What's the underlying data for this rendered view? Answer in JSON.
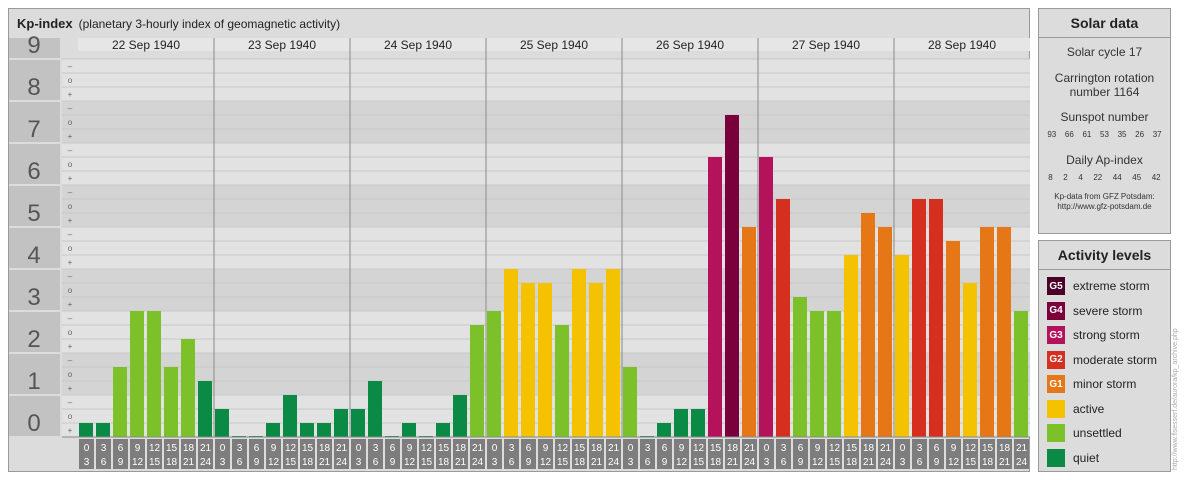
{
  "header": {
    "title": "Kp-index",
    "subtitle": "(planetary 3-hourly index of geomagnetic activity)"
  },
  "solar": {
    "title": "Solar data",
    "cycle": "Solar cycle 17",
    "carrington": "Carrington rotation number 1164",
    "sunspot_label": "Sunspot number",
    "sunspot_values": [
      "93",
      "66",
      "61",
      "53",
      "35",
      "26",
      "37"
    ],
    "ap_label": "Daily Ap-index",
    "ap_values": [
      "8",
      "2",
      "4",
      "22",
      "44",
      "45",
      "42"
    ],
    "credit_line1": "Kp-data from GFZ Potsdam:",
    "credit_line2": "http://www.gfz-potsdam.de"
  },
  "levels": {
    "title": "Activity levels",
    "items": [
      {
        "badge": "G5",
        "label": "extreme storm",
        "color": "#4a0028"
      },
      {
        "badge": "G4",
        "label": "severe storm",
        "color": "#7a003c"
      },
      {
        "badge": "G3",
        "label": "strong storm",
        "color": "#b5125c"
      },
      {
        "badge": "G2",
        "label": "moderate storm",
        "color": "#d42f1f"
      },
      {
        "badge": "G1",
        "label": "minor storm",
        "color": "#e57716"
      },
      {
        "badge": "",
        "label": "active",
        "color": "#f5c200"
      },
      {
        "badge": "",
        "label": "unsettled",
        "color": "#7cc12a"
      },
      {
        "badge": "",
        "label": "quiet",
        "color": "#0a8a44"
      }
    ]
  },
  "side_watermark": "http://www.flsesserf.de/aurora/kp_archive.php",
  "chart_data": {
    "type": "bar",
    "title": "Kp-index",
    "ylim": [
      0,
      9
    ],
    "y_ticks": [
      "0",
      "1",
      "2",
      "3",
      "4",
      "5",
      "6",
      "7",
      "8",
      "9"
    ],
    "subticks": [
      "+",
      "o",
      "–"
    ],
    "days": [
      "22 Sep 1940",
      "23 Sep 1940",
      "24 Sep 1940",
      "25 Sep 1940",
      "26 Sep 1940",
      "27 Sep 1940",
      "28 Sep 1940"
    ],
    "hour_start": [
      "0",
      "3",
      "6",
      "9",
      "12",
      "15",
      "18",
      "21"
    ],
    "hour_end": [
      "3",
      "6",
      "9",
      "12",
      "15",
      "18",
      "21",
      "24"
    ],
    "values": [
      [
        0.333,
        0.333,
        1.667,
        3.0,
        3.0,
        1.667,
        2.333,
        1.333
      ],
      [
        0.667,
        0.0,
        0.0,
        0.333,
        1.0,
        0.333,
        0.333,
        0.667
      ],
      [
        0.667,
        1.333,
        0.0,
        0.333,
        0.0,
        0.333,
        1.0,
        2.667
      ],
      [
        3.0,
        4.0,
        3.667,
        3.667,
        2.667,
        4.0,
        3.667,
        4.0
      ],
      [
        1.667,
        0.0,
        0.333,
        0.667,
        0.667,
        6.667,
        7.667,
        5.0
      ],
      [
        6.667,
        5.667,
        3.333,
        3.0,
        3.0,
        4.333,
        5.333,
        5.0
      ],
      [
        4.333,
        5.667,
        5.667,
        4.667,
        3.667,
        5.0,
        5.0,
        3.0
      ]
    ]
  }
}
